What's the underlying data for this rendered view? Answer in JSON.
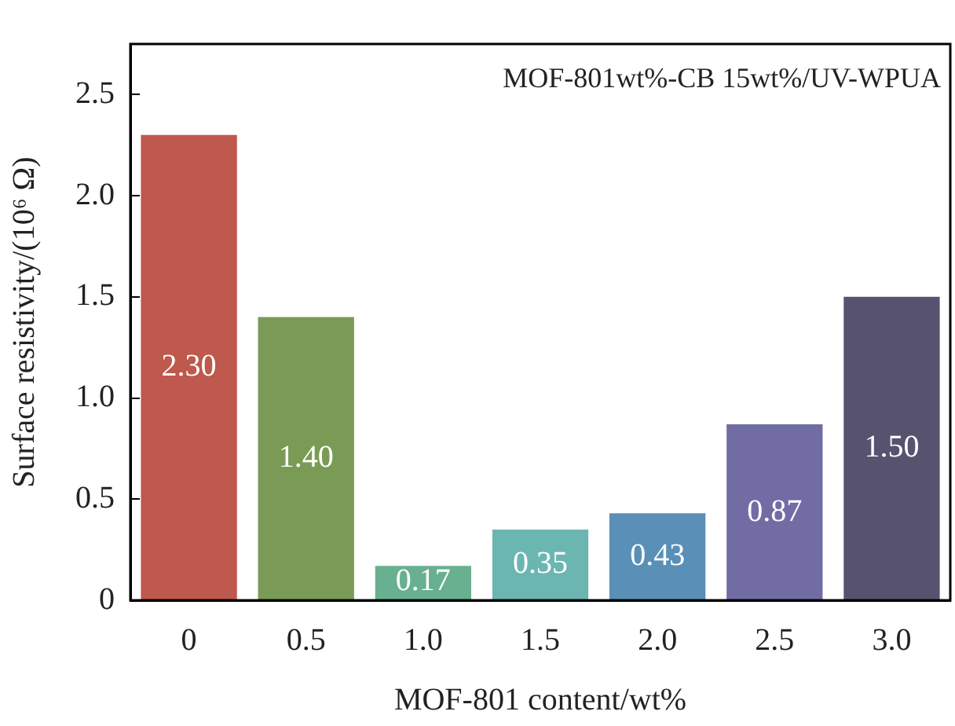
{
  "chart_data": {
    "type": "bar",
    "xlabel": "MOF-801 content/wt%",
    "ylabel": "Surface resistivity/(10⁶ Ω)",
    "annotations": [
      "MOF-801wt%-CB 15wt%/UV-WPUA"
    ],
    "categories": [
      "0",
      "0.5",
      "1.0",
      "1.5",
      "2.0",
      "2.5",
      "3.0"
    ],
    "values": [
      2.3,
      1.4,
      0.17,
      0.35,
      0.43,
      0.87,
      1.5
    ],
    "colors": [
      "#bf584d",
      "#7a9b55",
      "#68b08f",
      "#6cb6b2",
      "#5a8fb8",
      "#726ca5",
      "#57536f"
    ],
    "value_labels": [
      "2.30",
      "1.40",
      "0.17",
      "0.35",
      "0.43",
      "0.87",
      "1.50"
    ],
    "ylim": [
      0,
      2.75
    ],
    "yticks": [
      0,
      0.5,
      {
        "value": 1,
        "label": "1.0"
      },
      1.5,
      {
        "value": 2,
        "label": "2.0"
      },
      2.5
    ],
    "grid": false,
    "legend": false
  }
}
